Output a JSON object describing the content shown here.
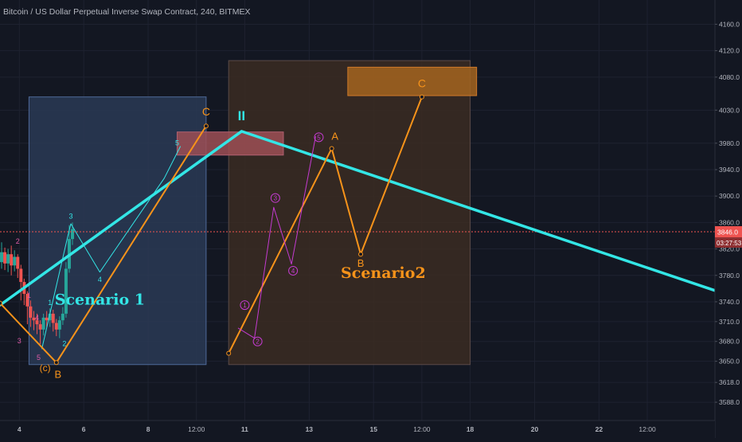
{
  "title": "Bitcoin / US Dollar Perpetual Inverse Swap Contract, 240, BITMEX",
  "colors": {
    "background": "#131722",
    "grid": "#1e2230",
    "cyan": "#33e6e6",
    "orange": "#f7931a",
    "magenta": "#c43bd1",
    "green": "#26a69a",
    "red": "#ef5350",
    "price_line": "#ef5350",
    "box1_fill": "#2a3a55",
    "box2_fill": "#3b2b22",
    "resistance_fill": "#9e4f55",
    "target_fill": "#a5641f"
  },
  "chart_data": {
    "type": "line",
    "ylim": [
      3570,
      4175
    ],
    "xlim": [
      3.4,
      25.6
    ],
    "y_ticks": [
      "4160.0",
      "4120.0",
      "4080.0",
      "4030.0",
      "3980.0",
      "3940.0",
      "3900.0",
      "3860.0",
      "3820.0",
      "3780.0",
      "3740.0",
      "3710.0",
      "3680.0",
      "3650.0",
      "3618.0",
      "3588.0"
    ],
    "x_ticks": [
      {
        "label": "4",
        "x": 4
      },
      {
        "label": "6",
        "x": 6
      },
      {
        "label": "8",
        "x": 8
      },
      {
        "label": "12:00",
        "x": 9.5
      },
      {
        "label": "11",
        "x": 11
      },
      {
        "label": "13",
        "x": 13
      },
      {
        "label": "15",
        "x": 15
      },
      {
        "label": "12:00",
        "x": 16.5
      },
      {
        "label": "18",
        "x": 18
      },
      {
        "label": "20",
        "x": 20
      },
      {
        "label": "22",
        "x": 22
      },
      {
        "label": "12:00",
        "x": 23.5
      }
    ],
    "current_price": {
      "value": 3846,
      "label": "3846.0",
      "countdown": "03:27:53"
    },
    "zones": [
      {
        "name": "Scenario 1 box",
        "x": [
          4.3,
          9.8
        ],
        "y": [
          3645,
          4050
        ],
        "fill": "#2a3a55",
        "border": "#4f6a9a"
      },
      {
        "name": "Scenario2 box",
        "x": [
          10.5,
          18
        ],
        "y": [
          3645,
          4105
        ],
        "fill": "#3b2b22",
        "border": "#5a4a48"
      },
      {
        "name": "resistance zone",
        "x": [
          8.9,
          12.2
        ],
        "y": [
          3962,
          3997
        ],
        "fill": "#9e4f55",
        "border": "#b06070"
      },
      {
        "name": "target zone",
        "x": [
          14.2,
          18.2
        ],
        "y": [
          4052,
          4095
        ],
        "fill": "#a5641f",
        "border": "#d07a2a"
      }
    ],
    "series": [
      {
        "color": "#33e6e6",
        "width": 3.5,
        "points": [
          [
            3.4,
            3735
          ],
          [
            10.9,
            3998
          ],
          [
            25.6,
            3757
          ]
        ]
      },
      {
        "color": "#33e6e6",
        "width": 1,
        "points": [
          [
            4.7,
            3669
          ],
          [
            5.5,
            3838
          ],
          [
            5.6,
            3858
          ],
          [
            6.5,
            3785
          ],
          [
            8.5,
            3927
          ],
          [
            9.0,
            3975
          ]
        ]
      },
      {
        "color": "#f7931a",
        "width": 2,
        "points": [
          [
            3.4,
            3738
          ],
          [
            5.15,
            3648
          ],
          [
            9.8,
            4006
          ]
        ]
      },
      {
        "color": "#f7931a",
        "width": 2,
        "points": [
          [
            10.5,
            3662
          ],
          [
            13.7,
            3972
          ],
          [
            14.6,
            3812
          ],
          [
            16.5,
            4050
          ]
        ]
      },
      {
        "color": "#c43bd1",
        "width": 1,
        "points": [
          [
            10.8,
            3700
          ],
          [
            11.3,
            3685
          ],
          [
            11.9,
            3883
          ],
          [
            12.45,
            3797
          ],
          [
            13.2,
            3990
          ]
        ]
      }
    ],
    "candles": [
      {
        "x": 3.45,
        "o": 3800,
        "c": 3815,
        "h": 3830,
        "l": 3790
      },
      {
        "x": 3.55,
        "o": 3815,
        "c": 3798,
        "h": 3822,
        "l": 3788
      },
      {
        "x": 3.65,
        "o": 3798,
        "c": 3812,
        "h": 3820,
        "l": 3785
      },
      {
        "x": 3.75,
        "o": 3812,
        "c": 3795,
        "h": 3825,
        "l": 3780
      },
      {
        "x": 3.85,
        "o": 3795,
        "c": 3808,
        "h": 3818,
        "l": 3786
      },
      {
        "x": 3.95,
        "o": 3808,
        "c": 3790,
        "h": 3812,
        "l": 3776
      },
      {
        "x": 4.05,
        "o": 3790,
        "c": 3770,
        "h": 3796,
        "l": 3742
      },
      {
        "x": 4.15,
        "o": 3770,
        "c": 3752,
        "h": 3775,
        "l": 3735
      },
      {
        "x": 4.25,
        "o": 3752,
        "c": 3733,
        "h": 3756,
        "l": 3706
      },
      {
        "x": 4.35,
        "o": 3733,
        "c": 3716,
        "h": 3742,
        "l": 3702
      },
      {
        "x": 4.45,
        "o": 3716,
        "c": 3712,
        "h": 3726,
        "l": 3697
      },
      {
        "x": 4.55,
        "o": 3712,
        "c": 3706,
        "h": 3722,
        "l": 3691
      },
      {
        "x": 4.65,
        "o": 3706,
        "c": 3698,
        "h": 3712,
        "l": 3676
      },
      {
        "x": 4.75,
        "o": 3698,
        "c": 3716,
        "h": 3722,
        "l": 3689
      },
      {
        "x": 4.85,
        "o": 3716,
        "c": 3712,
        "h": 3726,
        "l": 3702
      },
      {
        "x": 4.95,
        "o": 3712,
        "c": 3722,
        "h": 3730,
        "l": 3702
      },
      {
        "x": 5.05,
        "o": 3722,
        "c": 3708,
        "h": 3728,
        "l": 3695
      },
      {
        "x": 5.15,
        "o": 3708,
        "c": 3698,
        "h": 3714,
        "l": 3688
      },
      {
        "x": 5.25,
        "o": 3698,
        "c": 3712,
        "h": 3718,
        "l": 3685
      },
      {
        "x": 5.35,
        "o": 3712,
        "c": 3722,
        "h": 3732,
        "l": 3705
      },
      {
        "x": 5.45,
        "o": 3722,
        "c": 3790,
        "h": 3800,
        "l": 3716
      },
      {
        "x": 5.55,
        "o": 3790,
        "c": 3835,
        "h": 3856,
        "l": 3784
      },
      {
        "x": 5.65,
        "o": 3835,
        "c": 3850,
        "h": 3860,
        "l": 3826
      }
    ],
    "wave_labels": [
      {
        "text": "2",
        "x": 3.95,
        "y": 3828,
        "color": "#e05aa8",
        "size": 9
      },
      {
        "text": "1",
        "x": 4.3,
        "y": 3746,
        "color": "#e05aa8",
        "size": 9
      },
      {
        "text": "3",
        "x": 4.0,
        "y": 3677,
        "color": "#e05aa8",
        "size": 9
      },
      {
        "text": "4",
        "x": 4.55,
        "y": 3712,
        "color": "#e05aa8",
        "size": 9
      },
      {
        "text": "5",
        "x": 4.6,
        "y": 3652,
        "color": "#e05aa8",
        "size": 9
      },
      {
        "text": "1",
        "x": 4.95,
        "y": 3735,
        "color": "#33e6e6",
        "size": 9
      },
      {
        "text": "2",
        "x": 5.4,
        "y": 3673,
        "color": "#33e6e6",
        "size": 9
      },
      {
        "text": "3",
        "x": 5.6,
        "y": 3866,
        "color": "#33e6e6",
        "size": 9
      },
      {
        "text": "4",
        "x": 6.5,
        "y": 3770,
        "color": "#33e6e6",
        "size": 9
      },
      {
        "text": "5",
        "x": 8.9,
        "y": 3977,
        "color": "#33e6e6",
        "size": 9
      },
      {
        "text": "(c)",
        "x": 4.8,
        "y": 3635,
        "color": "#f7931a",
        "size": 12
      },
      {
        "text": "B",
        "x": 5.2,
        "y": 3625,
        "color": "#f7931a",
        "size": 13
      },
      {
        "text": "C",
        "x": 9.8,
        "y": 4022,
        "color": "#f7931a",
        "size": 14
      },
      {
        "text": "A",
        "x": 13.8,
        "y": 3985,
        "color": "#f7931a",
        "size": 13
      },
      {
        "text": "B",
        "x": 14.6,
        "y": 3793,
        "color": "#f7931a",
        "size": 13
      },
      {
        "text": "C",
        "x": 16.5,
        "y": 4065,
        "color": "#f7931a",
        "size": 14
      },
      {
        "text": "II",
        "x": 10.9,
        "y": 4015,
        "color": "#33e6e6",
        "size": 17
      }
    ],
    "circle_labels": [
      {
        "text": "1",
        "x": 11.0,
        "y": 3735
      },
      {
        "text": "2",
        "x": 11.4,
        "y": 3680
      },
      {
        "text": "3",
        "x": 11.95,
        "y": 3897
      },
      {
        "text": "4",
        "x": 12.5,
        "y": 3787
      },
      {
        "text": "5",
        "x": 13.3,
        "y": 3989
      }
    ],
    "annotations": [
      {
        "text": "Scenario 1",
        "x": 6.5,
        "y": 3736,
        "color": "#33e6e6"
      },
      {
        "text": "Scenario2",
        "x": 15.3,
        "y": 3776,
        "color": "#f7931a"
      }
    ]
  }
}
